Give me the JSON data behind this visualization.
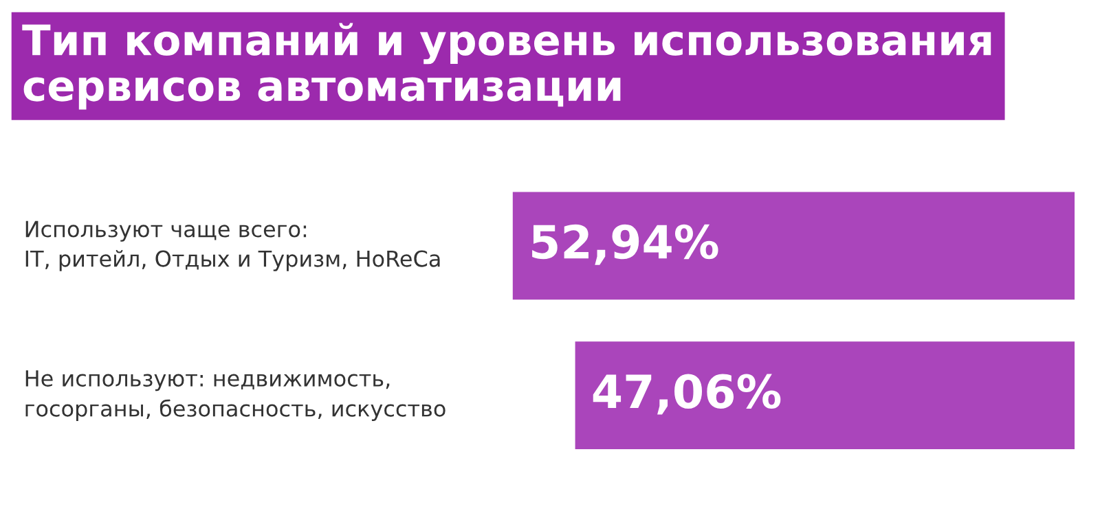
{
  "chart_data": {
    "type": "bar",
    "orientation": "horizontal",
    "title": "Тип компаний и уровень использования\nсервисов автоматизации",
    "categories": [
      "Используют чаще всего:\nIT, ритейл, Отдых и Туризм, HoReCa",
      "Не используют: недвижимость,\nгосорганы, безопасность, искусство"
    ],
    "values": [
      52.94,
      47.06
    ],
    "value_labels": [
      "52,94%",
      "47,06%"
    ],
    "color": "#aa45bb"
  }
}
